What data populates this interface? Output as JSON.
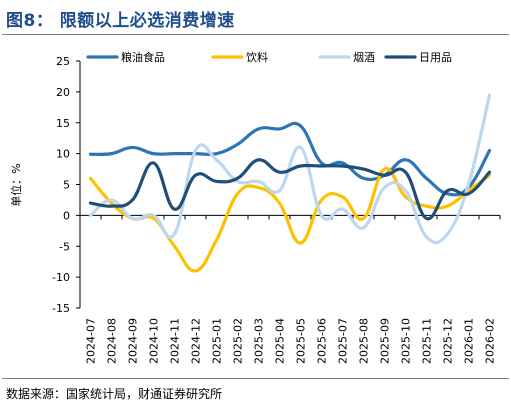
{
  "figure": {
    "title": "图8： 限额以上必选消费增速",
    "source": "数据来源：国家统计局，财通证券研究所"
  },
  "chart_data": {
    "type": "line",
    "ylabel": "单位：%",
    "xlabel": "",
    "ylim": [
      -15,
      25
    ],
    "yticks": [
      -15,
      -10,
      -5,
      0,
      5,
      10,
      15,
      20,
      25
    ],
    "grid": false,
    "legend_position": "top",
    "categories": [
      "2024-07",
      "2024-08",
      "2024-09",
      "2024-10",
      "2024-11",
      "2024-12",
      "2025-01",
      "2025-02",
      "2025-03",
      "2025-04",
      "2025-05",
      "2025-06",
      "2025-07",
      "2025-08",
      "2025-09",
      "2025-10",
      "2025-11",
      "2025-12",
      "2026-01",
      "2026-02"
    ],
    "x_tick_labels": [
      "2024-07",
      "2024-08",
      "2024-09",
      "2024-10",
      "2024-11",
      "2024-12",
      "2025-01",
      "2025-02",
      "2025-03",
      "2025-04",
      "2025-05",
      "2025-06",
      "2025-07",
      "2025-08",
      "2025-09",
      "2025-10",
      "2025-11",
      "2025-12",
      "2026-01",
      "2026-02"
    ],
    "series": [
      {
        "name": "粮油食品",
        "color": "#2e75b6",
        "values": [
          9.9,
          10.0,
          11.0,
          10.0,
          10.0,
          10.0,
          10.0,
          11.5,
          14.0,
          14.0,
          14.5,
          8.5,
          8.5,
          6.0,
          6.5,
          9.0,
          6.0,
          3.5,
          4.5,
          10.5
        ]
      },
      {
        "name": "饮料",
        "color": "#ffc000",
        "values": [
          6.0,
          2.0,
          -0.5,
          -0.5,
          -5.0,
          -9.0,
          -4.0,
          3.5,
          4.5,
          2.0,
          -4.5,
          2.5,
          3.0,
          -0.5,
          7.5,
          3.0,
          1.5,
          1.5,
          4.0,
          6.5
        ]
      },
      {
        "name": "烟酒",
        "color": "#bdd7ee",
        "values": [
          0.0,
          2.5,
          -0.5,
          0.0,
          -3.0,
          10.5,
          9.0,
          5.5,
          5.5,
          4.0,
          11.0,
          0.0,
          1.0,
          -2.0,
          4.5,
          4.0,
          -3.5,
          -3.0,
          5.0,
          19.5
        ]
      },
      {
        "name": "日用品",
        "color": "#1f4e79",
        "values": [
          2.0,
          1.5,
          2.5,
          8.5,
          1.0,
          6.5,
          5.5,
          6.0,
          9.0,
          7.0,
          8.0,
          8.0,
          8.0,
          7.5,
          6.5,
          7.0,
          -0.5,
          4.0,
          3.5,
          7.0
        ]
      }
    ]
  }
}
